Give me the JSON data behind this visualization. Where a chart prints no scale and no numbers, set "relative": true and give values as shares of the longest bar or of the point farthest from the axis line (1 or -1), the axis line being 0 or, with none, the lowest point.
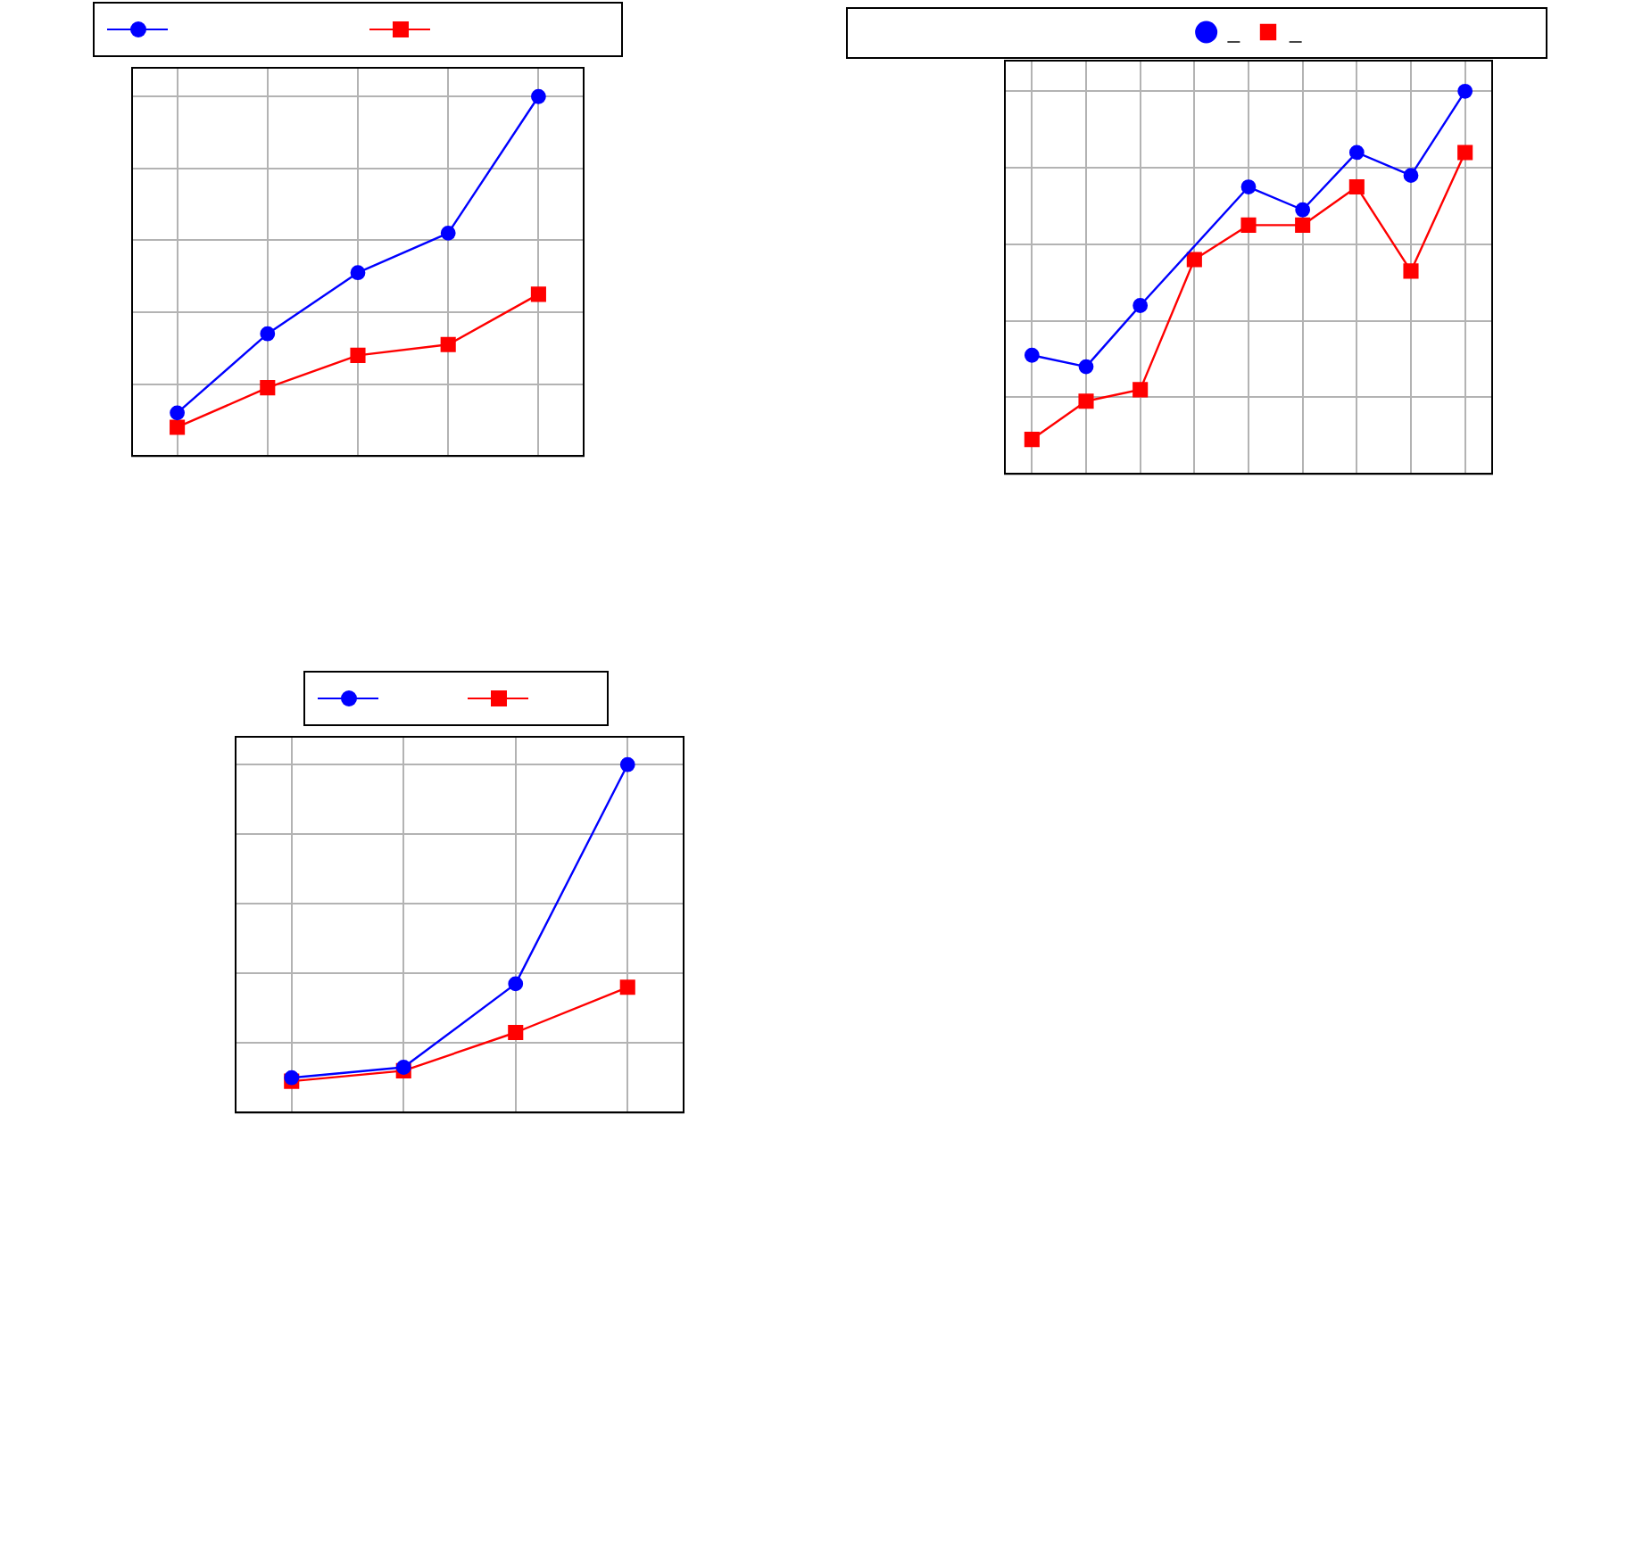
{
  "chart_data": [
    {
      "type": "line",
      "categories": [
        null,
        null,
        null,
        null,
        null
      ],
      "relative": true,
      "grid": true,
      "legend": "top",
      "series": [
        {
          "color": "#0000ff",
          "marker": "circle",
          "values": [
            0.12,
            0.34,
            0.51,
            0.62,
            1
          ]
        },
        {
          "color": "#ff0000",
          "marker": "square",
          "values": [
            0.08,
            0.19,
            0.28,
            0.31,
            0.45
          ]
        }
      ]
    },
    {
      "type": "line",
      "categories": [
        null,
        null,
        null,
        null,
        null,
        null,
        null,
        null,
        null
      ],
      "relative": true,
      "grid": true,
      "legend": "top",
      "series": [
        {
          "name": "_",
          "color": "#0000ff",
          "marker": "circle",
          "values": [
            0.31,
            0.28,
            0.44,
            null,
            0.75,
            0.69,
            0.84,
            0.78,
            1
          ]
        },
        {
          "name": "_",
          "color": "#ff0000",
          "marker": "square",
          "values": [
            0.09,
            0.19,
            0.22,
            0.56,
            0.65,
            0.65,
            0.75,
            0.53,
            0.84
          ]
        }
      ]
    },
    {
      "type": "line",
      "categories": [
        null,
        null,
        null,
        null
      ],
      "relative": true,
      "grid": true,
      "legend": "top",
      "series": [
        {
          "color": "#0000ff",
          "marker": "circle",
          "values": [
            0.1,
            0.13,
            0.37,
            1
          ]
        },
        {
          "color": "#ff0000",
          "marker": "square",
          "values": [
            0.09,
            0.12,
            0.23,
            0.36
          ]
        }
      ]
    }
  ]
}
